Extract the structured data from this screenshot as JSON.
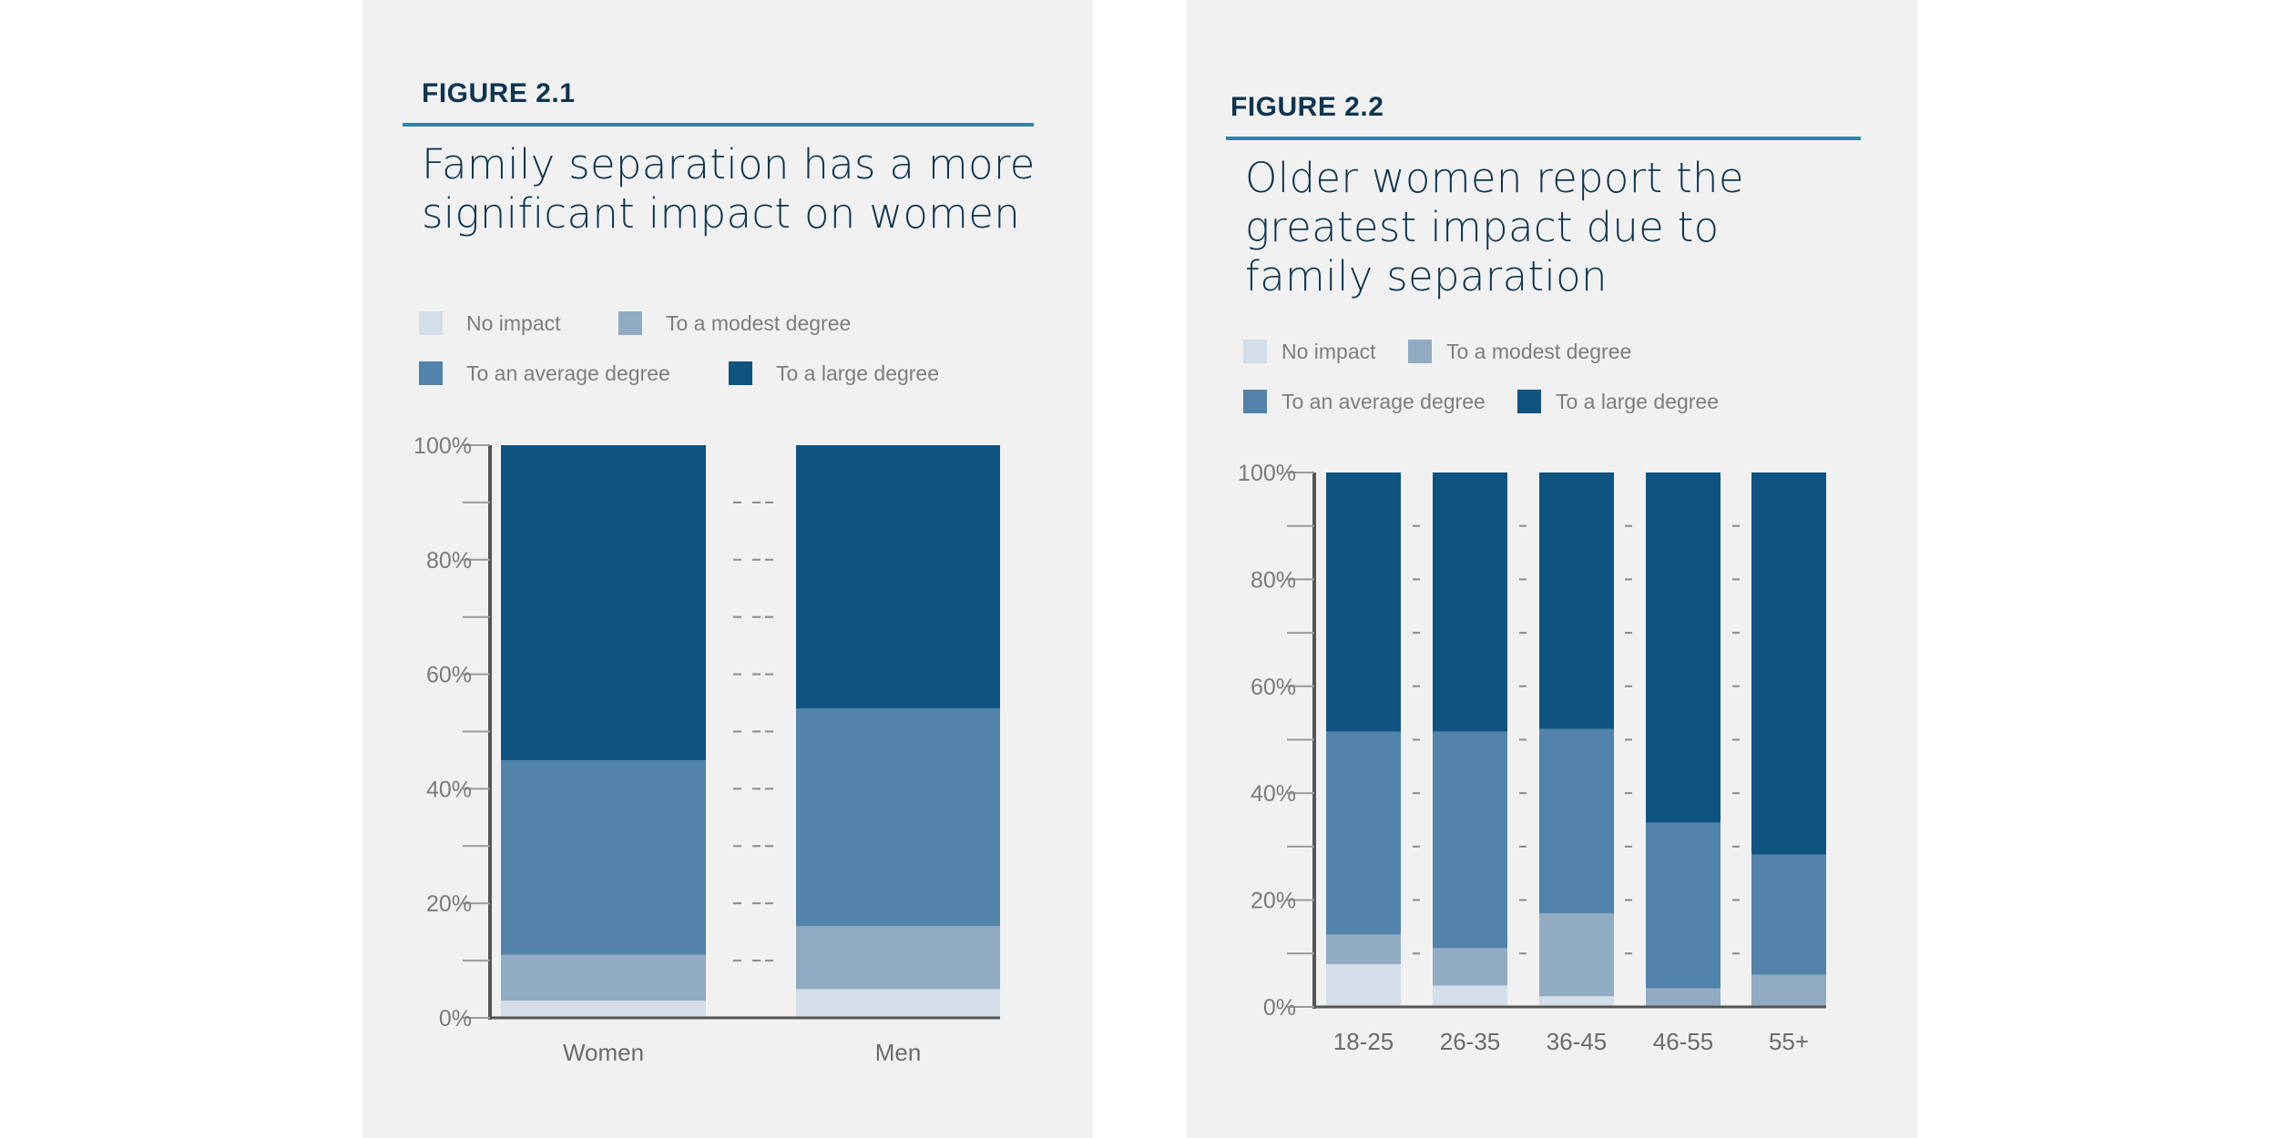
{
  "colors": {
    "no_impact": "#d3dee8",
    "modest": "#91abc3",
    "average": "#5283ab",
    "large": "#0f5381",
    "axis": "#555555",
    "tick_text": "#7a7a7a",
    "title": "#0e3550",
    "rule": "#2f84a8",
    "panel_bg": "#f1f1f1"
  },
  "figures": [
    {
      "label": "FIGURE 2.1",
      "title_lines": [
        "Family separation has a more",
        "significant impact on women"
      ],
      "legend": [
        {
          "label": "No impact",
          "color_key": "no_impact"
        },
        {
          "label": "To a modest degree",
          "color_key": "modest"
        },
        {
          "label": "To an average degree",
          "color_key": "average"
        },
        {
          "label": "To a large degree",
          "color_key": "large"
        }
      ]
    },
    {
      "label": "FIGURE 2.2",
      "title_lines": [
        "Older women report the",
        "greatest impact due to",
        "family separation"
      ],
      "legend": [
        {
          "label": "No impact",
          "color_key": "no_impact"
        },
        {
          "label": "To a modest degree",
          "color_key": "modest"
        },
        {
          "label": "To an average degree",
          "color_key": "average"
        },
        {
          "label": "To a large degree",
          "color_key": "large"
        }
      ]
    }
  ],
  "chart_data": [
    {
      "type": "bar",
      "stacked": true,
      "title": "Family separation has a more significant impact on women",
      "categories": [
        "Women",
        "Men"
      ],
      "series": [
        {
          "name": "No impact",
          "values": [
            3,
            5
          ]
        },
        {
          "name": "To a modest degree",
          "values": [
            8,
            11
          ]
        },
        {
          "name": "To an average degree",
          "values": [
            34,
            38
          ]
        },
        {
          "name": "To a large degree",
          "values": [
            55,
            46
          ]
        }
      ],
      "ylim": [
        0,
        100
      ],
      "yticks": [
        "0%",
        "20%",
        "40%",
        "60%",
        "80%",
        "100%"
      ],
      "xlabel": "",
      "ylabel": ""
    },
    {
      "type": "bar",
      "stacked": true,
      "title": "Older women report the greatest impact due to family separation",
      "categories": [
        "18-25",
        "26-35",
        "36-45",
        "46-55",
        "55+"
      ],
      "series": [
        {
          "name": "No impact",
          "values": [
            8,
            4,
            2,
            0,
            0
          ]
        },
        {
          "name": "To a modest degree",
          "values": [
            5.5,
            7,
            15.5,
            3.5,
            6
          ]
        },
        {
          "name": "To an average degree",
          "values": [
            38,
            40.5,
            34.5,
            31,
            22.5
          ]
        },
        {
          "name": "To a large degree",
          "values": [
            48.5,
            48.5,
            48,
            65.5,
            71.5
          ]
        }
      ],
      "ylim": [
        0,
        100
      ],
      "yticks": [
        "0%",
        "20%",
        "40%",
        "60%",
        "80%",
        "100%"
      ],
      "xlabel": "",
      "ylabel": ""
    }
  ]
}
